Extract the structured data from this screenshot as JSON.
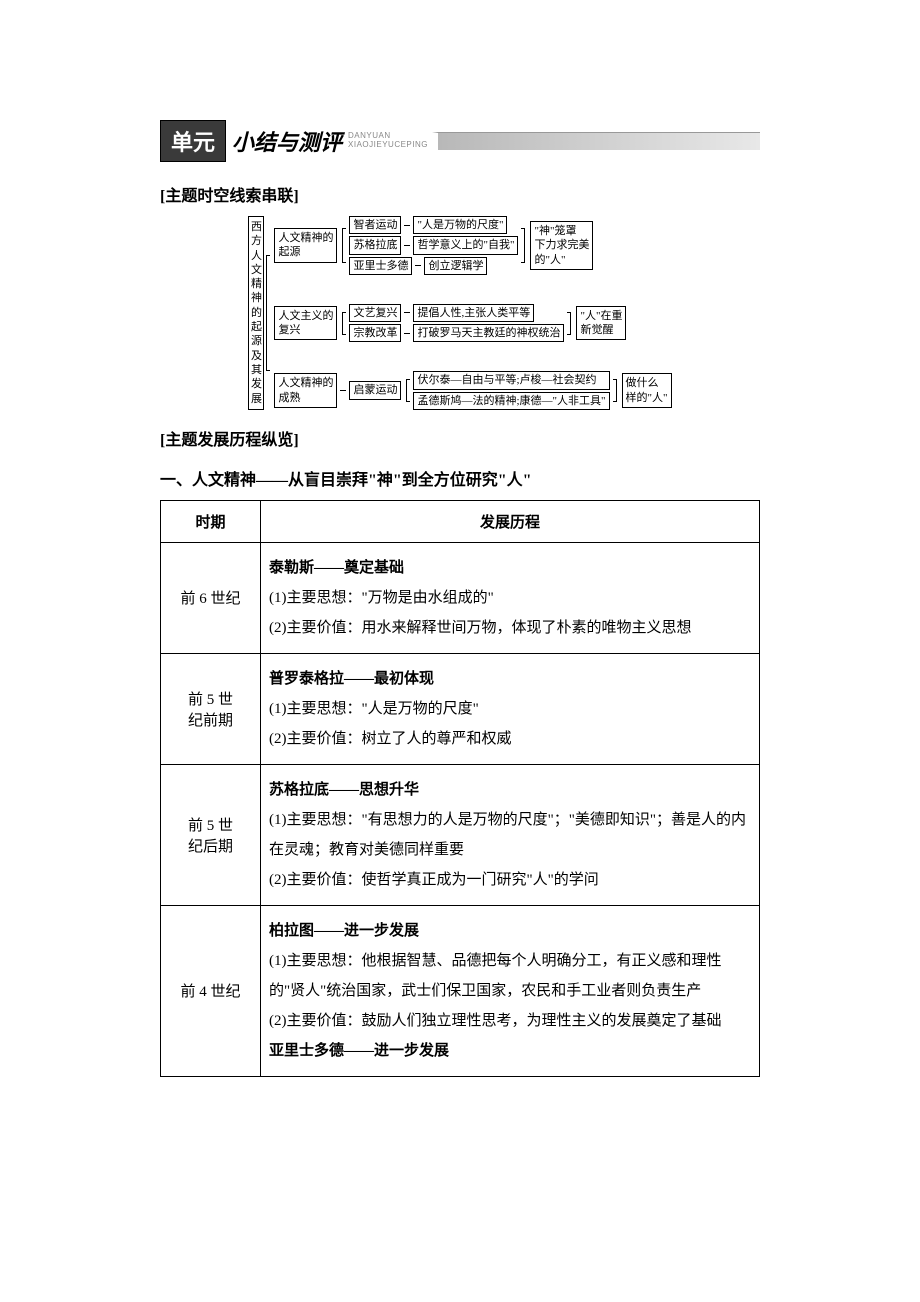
{
  "header": {
    "badge": "单元",
    "title": "小结与测评",
    "pinyin_line1": "DANYUAN",
    "pinyin_line2": "XIAOJIEYUCEPING"
  },
  "section1_heading": "[主题时空线索串联]",
  "diagram": {
    "root_label": "西方人文精神的起源及其发展",
    "group1": {
      "label_l1": "人文精神的",
      "label_l2": "起源",
      "row1_a": "智者运动",
      "row1_b": "\"人是万物的尺度\"",
      "row2_a": "苏格拉底",
      "row2_b": "哲学意义上的\"自我\"",
      "row3_a": "亚里士多德",
      "row3_b": "创立逻辑学",
      "result_l1": "\"神\"笼罩",
      "result_l2": "下力求完美",
      "result_l3": "的\"人\""
    },
    "group2": {
      "label_l1": "人文主义的",
      "label_l2": "复兴",
      "row1_a": "文艺复兴",
      "row1_b": "提倡人性,主张人类平等",
      "row2_a": "宗教改革",
      "row2_b": "打破罗马天主教廷的神权统治",
      "result_l1": "\"人\"在重",
      "result_l2": "新觉醒"
    },
    "group3": {
      "label_l1": "人文精神的",
      "label_l2": "成熟",
      "mid": "启蒙运动",
      "row1": "伏尔泰—自由与平等;卢梭—社会契约",
      "row2": "孟德斯鸠—法的精神;康德—\"人非工具\"",
      "result_l1": "做什么",
      "result_l2": "样的\"人\""
    }
  },
  "section2_heading": "[主题发展历程纵览]",
  "main_heading": "一、人文精神——从盲目崇拜\"神\"到全方位研究\"人\"",
  "table": {
    "col1": "时期",
    "col2": "发展历程",
    "rows": [
      {
        "period": "前 6 世纪",
        "title": "泰勒斯——奠定基础",
        "lines": [
          "(1)主要思想：\"万物是由水组成的\"",
          "(2)主要价值：用水来解释世间万物，体现了朴素的唯物主义思想"
        ]
      },
      {
        "period_l1": "前 5 世",
        "period_l2": "纪前期",
        "title": "普罗泰格拉——最初体现",
        "lines": [
          "(1)主要思想：\"人是万物的尺度\"",
          "(2)主要价值：树立了人的尊严和权威"
        ]
      },
      {
        "period_l1": "前 5 世",
        "period_l2": "纪后期",
        "title": "苏格拉底——思想升华",
        "lines": [
          "(1)主要思想：\"有思想力的人是万物的尺度\"；\"美德即知识\"；善是人的内在灵魂；教育对美德同样重要",
          "(2)主要价值：使哲学真正成为一门研究\"人\"的学问"
        ]
      },
      {
        "period": "前 4 世纪",
        "title": "柏拉图——进一步发展",
        "lines": [
          "(1)主要思想：他根据智慧、品德把每个人明确分工，有正义感和理性的\"贤人\"统治国家，武士们保卫国家，农民和手工业者则负责生产",
          "(2)主要价值：鼓励人们独立理性思考，为理性主义的发展奠定了基础"
        ],
        "title2": "亚里士多德——进一步发展"
      }
    ]
  },
  "colors": {
    "header_badge_bg": "#3a3a3a",
    "header_badge_fg": "#ffffff",
    "stripe_start": "#b8b8b8",
    "stripe_end": "#e8e8e8",
    "text": "#000000",
    "border": "#000000",
    "background": "#ffffff"
  },
  "typography": {
    "body_font": "SimSun",
    "heading_font": "SimHei",
    "body_size_pt": 15,
    "heading_size_pt": 16,
    "diagram_size_pt": 11
  }
}
